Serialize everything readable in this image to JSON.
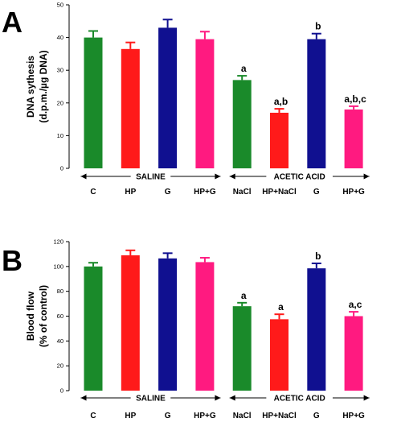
{
  "panels": [
    {
      "letter": "A",
      "chart_data": {
        "type": "bar",
        "ylabel": [
          "DNA sythesis",
          "(d.p.m./µg DNA)"
        ],
        "ylim": [
          0,
          50
        ],
        "yticks": [
          0,
          10,
          20,
          30,
          40,
          50
        ],
        "categories": [
          "C",
          "HP",
          "G",
          "HP+G",
          "NaCl",
          "HP+NaCl",
          "G",
          "HP+G"
        ],
        "values": [
          40,
          36.5,
          43,
          39.5,
          27,
          17,
          39.5,
          18
        ],
        "errors": [
          2,
          2,
          2.5,
          2.3,
          1.3,
          1.2,
          1.7,
          1.0
        ],
        "annotations": [
          "",
          "",
          "",
          "",
          "a",
          "a,b",
          "b",
          "a,b,c"
        ],
        "colors": [
          "#1a8a2a",
          "#ff1a1a",
          "#101090",
          "#ff1a80",
          "#1a8a2a",
          "#ff1a1a",
          "#101090",
          "#ff1a80"
        ],
        "groups": [
          {
            "label": "SALINE",
            "start": 0,
            "end": 3
          },
          {
            "label": "ACETIC ACID",
            "start": 4,
            "end": 7
          }
        ],
        "grid": false
      }
    },
    {
      "letter": "B",
      "chart_data": {
        "type": "bar",
        "ylabel": [
          "Blood flow",
          "(% of control)"
        ],
        "ylim": [
          0,
          120
        ],
        "yticks": [
          0,
          20,
          40,
          60,
          80,
          100,
          120
        ],
        "categories": [
          "C",
          "HP",
          "G",
          "HP+G",
          "NaCl",
          "HP+NaCl",
          "G",
          "HP+G"
        ],
        "values": [
          100,
          109,
          106.5,
          103.5,
          68,
          57.5,
          98.5,
          60
        ],
        "errors": [
          3,
          4,
          4.2,
          3.5,
          2.8,
          4,
          4,
          3.5
        ],
        "annotations": [
          "",
          "",
          "",
          "",
          "a",
          "a",
          "b",
          "a,c"
        ],
        "colors": [
          "#1a8a2a",
          "#ff1a1a",
          "#101090",
          "#ff1a80",
          "#1a8a2a",
          "#ff1a1a",
          "#101090",
          "#ff1a80"
        ],
        "groups": [
          {
            "label": "SALINE",
            "start": 0,
            "end": 3
          },
          {
            "label": "ACETIC ACID",
            "start": 4,
            "end": 7
          }
        ],
        "grid": false
      }
    }
  ]
}
